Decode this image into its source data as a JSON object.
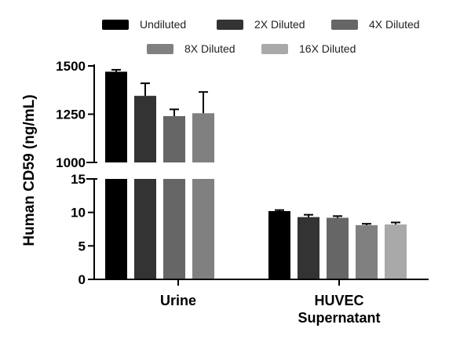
{
  "chart_data": {
    "type": "bar",
    "ylabel": "Human CD59 (ng/mL)",
    "categories": [
      {
        "lines": [
          "Urine"
        ]
      },
      {
        "lines": [
          "HUVEC",
          "Supernatant"
        ]
      }
    ],
    "series": [
      {
        "name": "Undiluted",
        "color": "#000000",
        "values": [
          1470,
          10.2
        ],
        "errors": [
          10,
          0.15
        ]
      },
      {
        "name": "2X Diluted",
        "color": "#333333",
        "values": [
          1345,
          9.3
        ],
        "errors": [
          65,
          0.35
        ]
      },
      {
        "name": "4X Diluted",
        "color": "#666666",
        "values": [
          1240,
          9.2
        ],
        "errors": [
          35,
          0.25
        ]
      },
      {
        "name": "8X Diluted",
        "color": "#808080",
        "values": [
          1255,
          8.1
        ],
        "errors": [
          110,
          0.2
        ]
      },
      {
        "name": "16X Diluted",
        "color": "#a9a9a9",
        "values": [
          0,
          8.2
        ],
        "errors": [
          0,
          0.3
        ]
      }
    ],
    "axis_upper": {
      "range": [
        1000,
        1500
      ],
      "ticks": [
        "1000",
        "1250",
        "1500"
      ]
    },
    "axis_lower": {
      "range": [
        0,
        15
      ],
      "ticks": [
        "0",
        "5",
        "10",
        "15"
      ]
    },
    "broken_axis": true,
    "legend": {
      "placement": "top",
      "rows": [
        [
          0,
          1,
          2
        ],
        [
          3,
          4
        ]
      ]
    }
  }
}
